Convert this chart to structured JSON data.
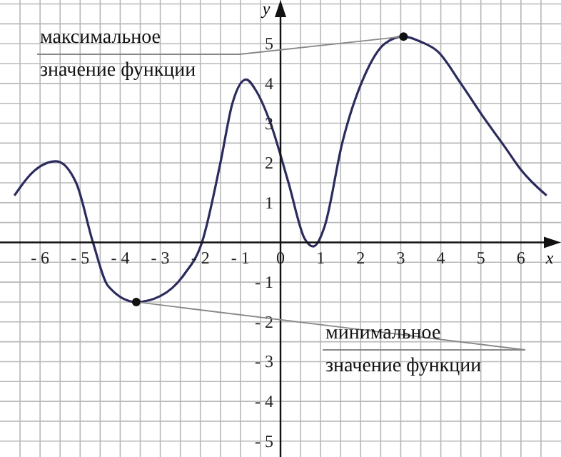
{
  "chart_data": {
    "type": "line",
    "xlabel": "x",
    "ylabel": "y",
    "x": [
      -6.64,
      -6.2,
      -5.6,
      -5.1,
      -4.68,
      -4.3,
      -3.6,
      -3,
      -2.4,
      -1.96,
      -1.5,
      -1.2,
      -0.86,
      -0.6,
      -0.25,
      0.2,
      0.6,
      0.82,
      1.1,
      1.54,
      2.14,
      2.6,
      3.07,
      3.5,
      3.93,
      4.5,
      5.1,
      5.6,
      6.03,
      6.64
    ],
    "series": [
      {
        "color": "#2b2b5e",
        "values": [
          1.18,
          1.75,
          2.04,
          1.5,
          0,
          -1.1,
          -1.5,
          -1.35,
          -0.8,
          0,
          2.0,
          3.5,
          4.1,
          3.8,
          3.0,
          1.5,
          0.1,
          -0.1,
          0.4,
          2.5,
          4.29,
          5.0,
          5.18,
          5.05,
          4.8,
          4.0,
          3.1,
          2.4,
          1.79,
          1.18
        ]
      }
    ],
    "xlim": [
      -7,
      7
    ],
    "ylim": [
      -5.4,
      6.1
    ],
    "xticks": [
      {
        "value": -6.5,
        "label": null
      },
      {
        "value": -6,
        "label": "- 6"
      },
      {
        "value": -5.5,
        "label": null
      },
      {
        "value": -5,
        "label": "- 5"
      },
      {
        "value": -4.5,
        "label": null
      },
      {
        "value": -4,
        "label": "- 4"
      },
      {
        "value": -3.5,
        "label": null
      },
      {
        "value": -3,
        "label": "- 3"
      },
      {
        "value": -2.5,
        "label": null
      },
      {
        "value": -2,
        "label": "- 2"
      },
      {
        "value": -1.5,
        "label": null
      },
      {
        "value": -1,
        "label": "- 1"
      },
      {
        "value": -0.5,
        "label": null
      },
      0,
      {
        "value": 0.5,
        "label": null
      },
      1,
      {
        "value": 1.5,
        "label": null
      },
      2,
      {
        "value": 2.5,
        "label": null
      },
      3,
      {
        "value": 3.5,
        "label": null
      },
      4,
      {
        "value": 4.5,
        "label": null
      },
      5,
      {
        "value": 5.5,
        "label": null
      },
      6,
      {
        "value": 6.5,
        "label": null
      }
    ],
    "yticks": [
      {
        "value": -5,
        "label": "- 5"
      },
      {
        "value": -4.5,
        "label": null
      },
      {
        "value": -4,
        "label": "- 4"
      },
      {
        "value": -3.5,
        "label": null
      },
      {
        "value": -3,
        "label": "- 3"
      },
      {
        "value": -2.5,
        "label": null
      },
      {
        "value": -2,
        "label": "- 2"
      },
      {
        "value": -1.5,
        "label": null
      },
      {
        "value": -1,
        "label": "- 1"
      },
      {
        "value": -0.5,
        "label": null
      },
      {
        "value": 0,
        "label": null
      },
      {
        "value": 0.5,
        "label": null
      },
      1,
      {
        "value": 1.5,
        "label": null
      },
      2,
      {
        "value": 2.5,
        "label": null
      },
      3,
      {
        "value": 3.5,
        "label": null
      },
      4,
      {
        "value": 4.5,
        "label": null
      },
      5,
      {
        "value": 5.5,
        "label": null
      },
      {
        "value": 6,
        "label": null
      }
    ],
    "grid": true,
    "marker": "none",
    "line_style": "solid",
    "annotations": [
      {
        "text": "максимальное значение функции",
        "x": 3.07,
        "y": 5.18
      },
      {
        "text": "минимальное значение функции",
        "x": -3.6,
        "y": -1.5
      }
    ]
  }
}
